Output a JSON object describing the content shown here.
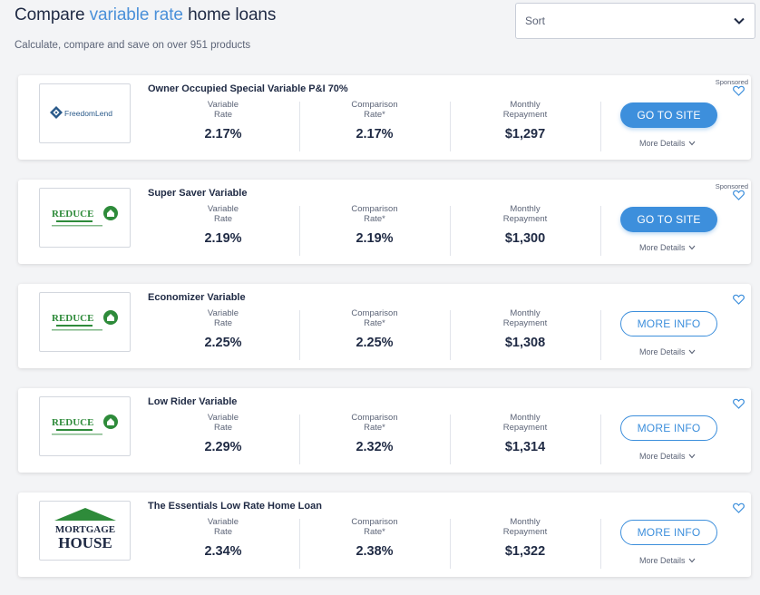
{
  "header": {
    "title_prefix": "Compare ",
    "title_accent": "variable rate",
    "title_suffix": " home loans",
    "subtitle": "Calculate, compare and save on over 951 products",
    "accent_color": "#4a90d9"
  },
  "sort": {
    "label": "Sort",
    "icon": "chevron-down-icon"
  },
  "labels": {
    "variable_rate_line1": "Variable",
    "variable_rate_line2": "Rate",
    "comparison_rate_line1": "Comparison",
    "comparison_rate_line2": "Rate*",
    "monthly_repayment_line1": "Monthly",
    "monthly_repayment_line2": "Repayment",
    "more_details": "More Details",
    "sponsored": "Sponsored"
  },
  "products": [
    {
      "name": "Owner Occupied Special Variable P&I 70%",
      "lender": "FreedomLend",
      "variable_rate": "2.17%",
      "comparison_rate": "2.17%",
      "monthly_repayment": "$1,297",
      "cta": "GO TO SITE",
      "sponsored": true
    },
    {
      "name": "Super Saver Variable",
      "lender": "REDUCE",
      "variable_rate": "2.19%",
      "comparison_rate": "2.19%",
      "monthly_repayment": "$1,300",
      "cta": "GO TO SITE",
      "sponsored": true
    },
    {
      "name": "Economizer Variable",
      "lender": "REDUCE",
      "variable_rate": "2.25%",
      "comparison_rate": "2.25%",
      "monthly_repayment": "$1,308",
      "cta": "MORE INFO",
      "sponsored": false
    },
    {
      "name": "Low Rider Variable",
      "lender": "REDUCE",
      "variable_rate": "2.29%",
      "comparison_rate": "2.32%",
      "monthly_repayment": "$1,314",
      "cta": "MORE INFO",
      "sponsored": false
    },
    {
      "name": "The Essentials Low Rate Home Loan",
      "lender": "MORTGAGE HOUSE",
      "variable_rate": "2.34%",
      "comparison_rate": "2.38%",
      "monthly_repayment": "$1,322",
      "cta": "MORE INFO",
      "sponsored": false
    }
  ],
  "colors": {
    "primary_button": "#3d8fdc",
    "text_dark": "#1f2a44",
    "text_muted": "#5c6477"
  }
}
